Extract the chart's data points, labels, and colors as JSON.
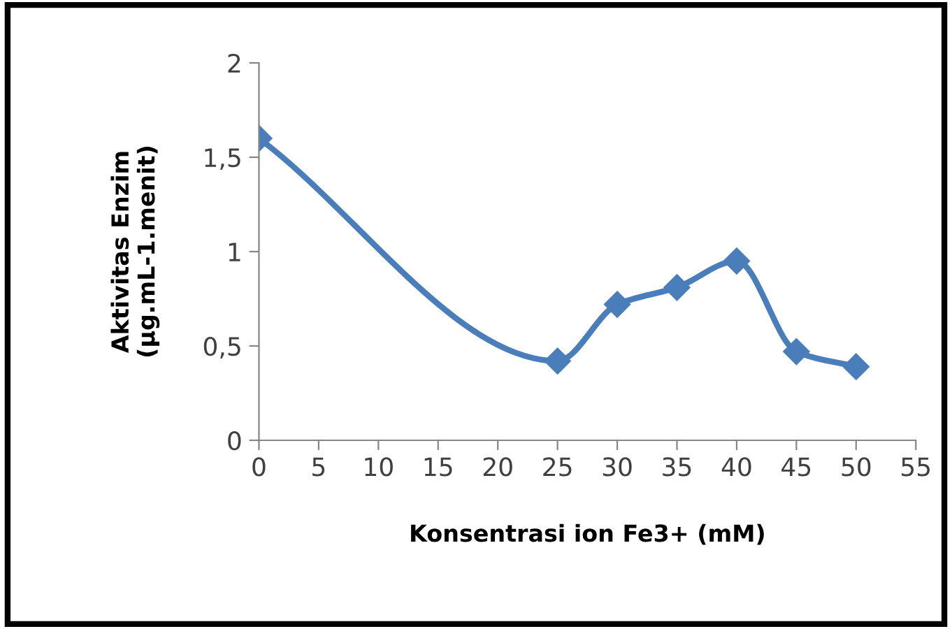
{
  "chart_data": {
    "type": "line",
    "xlabel": "Konsentrasi ion Fe3+ (mM)",
    "ylabel": "Aktivitas Enzim\n(µg.mL-1.menit)",
    "x": [
      0,
      25,
      30,
      35,
      40,
      45,
      50
    ],
    "series": [
      {
        "color": "#4a7ebb",
        "values": [
          1.6,
          0.42,
          0.72,
          0.81,
          0.95,
          0.47,
          0.39
        ]
      }
    ],
    "xlim": [
      0,
      55
    ],
    "xticks": [
      0,
      5,
      10,
      15,
      20,
      25,
      30,
      35,
      40,
      45,
      50,
      55
    ],
    "ylim": [
      0,
      2
    ],
    "yticks": [
      0,
      {
        "value": 0.5,
        "label": "0,5"
      },
      1,
      {
        "value": 1.5,
        "label": "1,5"
      },
      2
    ],
    "marker": "diamond",
    "line_style": "solid",
    "grid": false,
    "legend": false
  }
}
